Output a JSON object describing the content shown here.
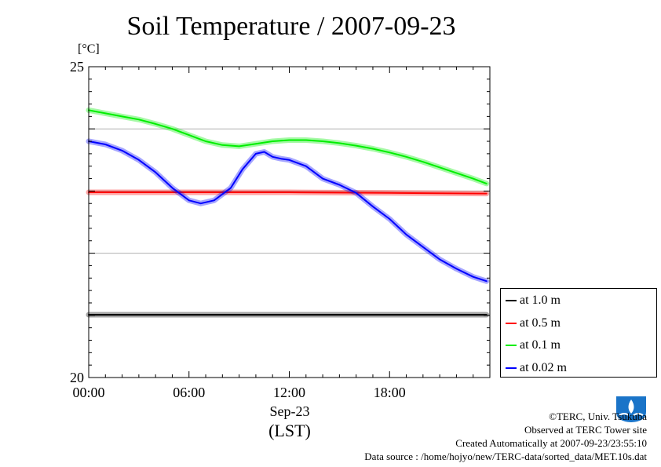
{
  "title": "Soil Temperature / 2007-09-23",
  "unit_label": "[°C]",
  "x_date_label": "Sep-23",
  "x_sub_label": "(LST)",
  "credits": {
    "copyright": "©TERC, Univ. Tsukuba",
    "observed": "Observed at TERC Tower site",
    "created": "Created Automatically at 2007-09-23/23:55:10",
    "source": "Data source : /home/hojyo/new/TERC-data/sorted_data/MET.10s.dat"
  },
  "logo_text": "TERC",
  "chart_data": {
    "type": "line",
    "title": "Soil Temperature / 2007-09-23",
    "ylabel": "[°C]",
    "xlabel": "Sep-23",
    "xlim": [
      0,
      24
    ],
    "ylim": [
      20,
      25
    ],
    "yticks": [
      20,
      25
    ],
    "xticks": [
      "00:00",
      "06:00",
      "12:00",
      "18:00"
    ],
    "xtick_values": [
      0,
      6,
      12,
      18
    ],
    "grid_y": [
      21,
      22,
      23,
      24
    ],
    "grid": true,
    "legend_placement": "right",
    "series": [
      {
        "name": "at 1.0 m",
        "color": "#000000",
        "x": [
          0,
          6,
          12,
          18,
          23.8
        ],
        "y": [
          21.01,
          21.01,
          21.01,
          21.01,
          21.01
        ]
      },
      {
        "name": "at 0.5 m",
        "color": "#ff0000",
        "x": [
          0,
          6,
          12,
          18,
          23.8
        ],
        "y": [
          22.98,
          22.98,
          22.98,
          22.97,
          22.96
        ]
      },
      {
        "name": "at 0.1 m",
        "color": "#00ee00",
        "x": [
          0,
          1,
          2,
          3,
          4,
          5,
          6,
          7,
          8,
          9,
          10,
          11,
          12,
          13,
          14,
          15,
          16,
          17,
          18,
          19,
          20,
          21,
          22,
          23,
          23.8
        ],
        "y": [
          24.3,
          24.25,
          24.2,
          24.15,
          24.08,
          24.0,
          23.9,
          23.8,
          23.74,
          23.72,
          23.76,
          23.8,
          23.82,
          23.82,
          23.8,
          23.77,
          23.73,
          23.68,
          23.62,
          23.55,
          23.47,
          23.38,
          23.29,
          23.2,
          23.12
        ]
      },
      {
        "name": "at 0.02 m",
        "color": "#0000ff",
        "x": [
          0,
          1,
          2,
          3,
          4,
          5,
          6,
          6.7,
          7.5,
          8.5,
          9.2,
          10,
          10.5,
          11,
          11.5,
          12,
          13,
          14,
          15,
          16,
          17,
          18,
          19,
          20,
          21,
          22,
          23,
          23.8
        ],
        "y": [
          23.8,
          23.75,
          23.65,
          23.5,
          23.3,
          23.05,
          22.85,
          22.8,
          22.85,
          23.05,
          23.35,
          23.6,
          23.63,
          23.55,
          23.52,
          23.5,
          23.4,
          23.2,
          23.1,
          22.97,
          22.75,
          22.55,
          22.3,
          22.1,
          21.9,
          21.75,
          21.62,
          21.55
        ]
      }
    ]
  }
}
